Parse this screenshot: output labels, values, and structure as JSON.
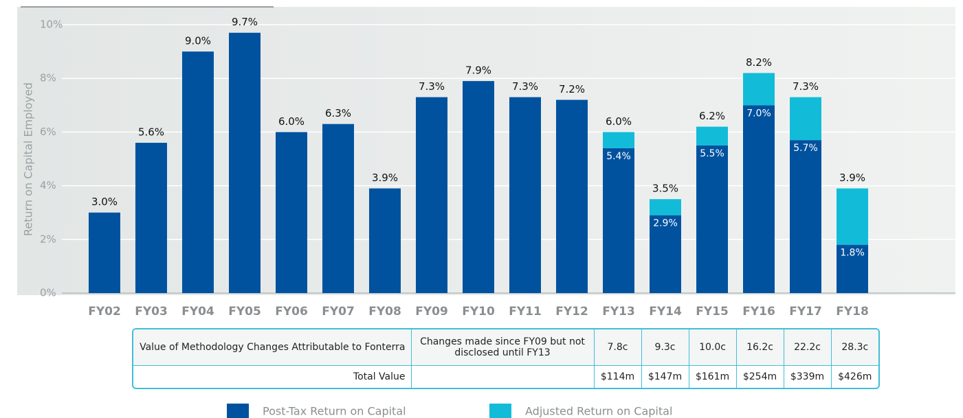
{
  "chart_data": {
    "type": "stacked-bar",
    "y_axis_label": "Return on Capital Employed",
    "categories": [
      "FY02",
      "FY03",
      "FY04",
      "FY05",
      "FY06",
      "FY07",
      "FY08",
      "FY09",
      "FY10",
      "FY11",
      "FY12",
      "FY13",
      "FY14",
      "FY15",
      "FY16",
      "FY17",
      "FY18"
    ],
    "series": [
      {
        "name": "Post-Tax Return on Capital",
        "color": "#00529f",
        "values": [
          3.0,
          5.6,
          9.0,
          9.7,
          6.0,
          6.3,
          3.9,
          7.3,
          7.9,
          7.3,
          7.2,
          5.4,
          2.9,
          5.5,
          7.0,
          5.7,
          1.8
        ],
        "value_labels": [
          "3.0%",
          "5.6%",
          "9.0%",
          "9.7%",
          "6.0%",
          "6.3%",
          "3.9%",
          "7.3%",
          "7.9%",
          "7.3%",
          "7.2%",
          "5.4%",
          "2.9%",
          "5.5%",
          "7.0%",
          "5.7%",
          "1.8%"
        ]
      },
      {
        "name": "Adjusted Return on Capital",
        "color": "#12bcd8",
        "values": [
          null,
          null,
          null,
          null,
          null,
          null,
          null,
          null,
          null,
          null,
          null,
          0.6,
          0.6,
          0.7,
          1.2,
          1.6,
          2.1
        ]
      }
    ],
    "totals": [
      null,
      null,
      null,
      null,
      null,
      null,
      null,
      null,
      null,
      null,
      null,
      6.0,
      3.5,
      6.2,
      8.2,
      7.3,
      3.9
    ],
    "total_labels": [
      null,
      null,
      null,
      null,
      null,
      null,
      null,
      null,
      null,
      null,
      null,
      "6.0%",
      "3.5%",
      "6.2%",
      "8.2%",
      "7.3%",
      "3.9%"
    ],
    "ylim": [
      0,
      10
    ],
    "yticks": [
      {
        "value": 0,
        "label": "0%"
      },
      {
        "value": 2,
        "label": "2%"
      },
      {
        "value": 4,
        "label": "4%"
      },
      {
        "value": 6,
        "label": "6%"
      },
      {
        "value": 8,
        "label": "8%"
      },
      {
        "value": 10,
        "label": "10%"
      }
    ],
    "grid": true,
    "legend": "bottom"
  },
  "table": {
    "rows": [
      [
        "Value of Methodology Changes Attributable to Fonterra",
        "Changes made since FY09 but not disclosed until FY13",
        "7.8c",
        "9.3c",
        "10.0c",
        "16.2c",
        "22.2c",
        "28.3c"
      ],
      [
        "Total Value",
        "$114m",
        "$147m",
        "$161m",
        "$254m",
        "$339m",
        "$426m"
      ]
    ]
  }
}
